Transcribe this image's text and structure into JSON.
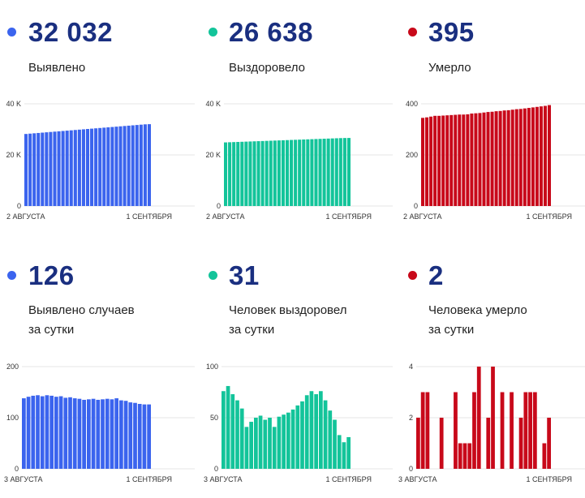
{
  "panels": [
    {
      "number": "32 032",
      "label_lines": [
        "Выявлено"
      ],
      "color": "#3b64ee",
      "chart_data": {
        "type": "bar",
        "y_ticks": [
          0,
          20000,
          40000
        ],
        "y_tick_labels": [
          "0",
          "20 K",
          "40 K"
        ],
        "ylim": [
          0,
          40000
        ],
        "x_start_label": "2 АВГУСТА",
        "x_end_label": "1 СЕНТЯБРЯ",
        "values": [
          28200,
          28330,
          28460,
          28590,
          28720,
          28850,
          28980,
          29110,
          29240,
          29370,
          29500,
          29630,
          29760,
          29890,
          30020,
          30150,
          30280,
          30410,
          30540,
          30670,
          30800,
          30930,
          31060,
          31190,
          31320,
          31450,
          31580,
          31710,
          31840,
          31970,
          32032
        ]
      }
    },
    {
      "number": "26 638",
      "label_lines": [
        "Выздоровело"
      ],
      "color": "#13c49a",
      "chart_data": {
        "type": "bar",
        "y_ticks": [
          0,
          20000,
          40000
        ],
        "y_tick_labels": [
          "0",
          "20 K",
          "40 K"
        ],
        "ylim": [
          0,
          40000
        ],
        "x_start_label": "2 АВГУСТА",
        "x_end_label": "1 СЕНТЯБРЯ",
        "values": [
          24900,
          24960,
          25020,
          25080,
          25140,
          25200,
          25260,
          25320,
          25380,
          25440,
          25500,
          25560,
          25620,
          25680,
          25740,
          25800,
          25860,
          25920,
          25980,
          26040,
          26100,
          26160,
          26220,
          26280,
          26340,
          26400,
          26460,
          26520,
          26580,
          26620,
          26638
        ]
      }
    },
    {
      "number": "395",
      "label_lines": [
        "Умерло"
      ],
      "color": "#c8091a",
      "chart_data": {
        "type": "bar",
        "y_ticks": [
          0,
          200,
          400
        ],
        "y_tick_labels": [
          "0",
          "200",
          "400"
        ],
        "ylim": [
          0,
          400
        ],
        "x_start_label": "2 АВГУСТА",
        "x_end_label": "1 СЕНТЯБРЯ",
        "values": [
          345,
          347,
          350,
          353,
          353,
          354,
          355,
          356,
          357,
          358,
          358,
          359,
          362,
          363,
          364,
          366,
          368,
          369,
          371,
          372,
          374,
          375,
          377,
          379,
          380,
          382,
          384,
          386,
          388,
          390,
          392,
          395
        ]
      }
    },
    {
      "number": "126",
      "label_lines": [
        "Выявлено случаев",
        "за сутки"
      ],
      "color": "#3b64ee",
      "chart_data": {
        "type": "bar",
        "y_ticks": [
          0,
          100,
          200
        ],
        "y_tick_labels": [
          "0",
          "100",
          "200"
        ],
        "ylim": [
          0,
          200
        ],
        "x_start_label": "3 АВГУСТА",
        "x_end_label": "1 СЕНТЯБРЯ",
        "values": [
          138,
          141,
          143,
          144,
          142,
          144,
          143,
          141,
          142,
          139,
          140,
          138,
          137,
          135,
          136,
          137,
          135,
          136,
          137,
          136,
          138,
          134,
          133,
          130,
          129,
          127,
          126,
          126
        ]
      }
    },
    {
      "number": "31",
      "label_lines": [
        "Человек выздоровел",
        "за сутки"
      ],
      "color": "#13c49a",
      "chart_data": {
        "type": "bar",
        "y_ticks": [
          0,
          50,
          100
        ],
        "y_tick_labels": [
          "0",
          "50",
          "100"
        ],
        "ylim": [
          0,
          100
        ],
        "x_start_label": "3 АВГУСТА",
        "x_end_label": "1 СЕНТЯБРЯ",
        "values": [
          76,
          81,
          73,
          67,
          59,
          41,
          46,
          50,
          52,
          48,
          50,
          41,
          51,
          53,
          55,
          58,
          62,
          66,
          72,
          76,
          73,
          76,
          67,
          57,
          48,
          33,
          26,
          31
        ]
      }
    },
    {
      "number": "2",
      "label_lines": [
        "Человека умерло",
        "за сутки"
      ],
      "color": "#c8091a",
      "chart_data": {
        "type": "bar",
        "y_ticks": [
          0,
          2,
          4
        ],
        "y_tick_labels": [
          "0",
          "2",
          "4"
        ],
        "ylim": [
          0,
          4
        ],
        "x_start_label": "3 АВГУСТА",
        "x_end_label": "1 СЕНТЯБРЯ",
        "values": [
          2,
          3,
          3,
          0,
          0,
          2,
          0,
          0,
          3,
          1,
          1,
          1,
          3,
          4,
          0,
          2,
          4,
          0,
          3,
          0,
          3,
          0,
          2,
          3,
          3,
          3,
          0,
          1,
          2
        ]
      }
    }
  ]
}
